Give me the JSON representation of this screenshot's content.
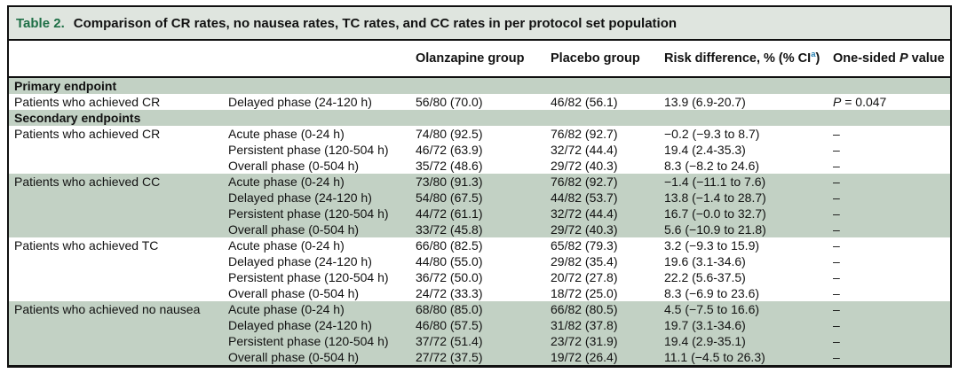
{
  "colors": {
    "shaded_row": "#c2d1c4",
    "title_bar": "#dfe5df",
    "table_label_green": "#1e6f46",
    "footnote_blue": "#2580b3"
  },
  "table": {
    "title_label": "Table 2.",
    "title_text": "Comparison of CR rates, no nausea rates, TC rates, and CC rates in per protocol set population",
    "header": {
      "col_endpoint": "",
      "col_phase": "",
      "col_olanzapine": "Olanzapine group",
      "col_placebo": "Placebo group",
      "col_risk_prefix": "Risk difference, % (% CI",
      "col_risk_sup": "a",
      "col_risk_suffix": ")",
      "col_p_prefix": "One-sided ",
      "col_p_italic": "P",
      "col_p_suffix": " value"
    },
    "sections": [
      {
        "type": "section",
        "label": "Primary endpoint",
        "shaded": true
      },
      {
        "type": "group",
        "label": "Patients who achieved CR",
        "shaded": false,
        "rows": [
          {
            "phase": "Delayed phase (24-120 h)",
            "olanzapine": "56/80 (70.0)",
            "placebo": "46/82 (56.1)",
            "risk": "13.9 (6.9-20.7)",
            "p": "P = 0.047"
          }
        ]
      },
      {
        "type": "section",
        "label": "Secondary endpoints",
        "shaded": true
      },
      {
        "type": "group",
        "label": "Patients who achieved CR",
        "shaded": false,
        "rows": [
          {
            "phase": "Acute phase (0-24 h)",
            "olanzapine": "74/80 (92.5)",
            "placebo": "76/82 (92.7)",
            "risk": "−0.2 (−9.3 to 8.7)",
            "p": "–"
          },
          {
            "phase": "Persistent phase (120-504 h)",
            "olanzapine": "46/72 (63.9)",
            "placebo": "32/72 (44.4)",
            "risk": "19.4 (2.4-35.3)",
            "p": "–"
          },
          {
            "phase": "Overall phase (0-504 h)",
            "olanzapine": "35/72 (48.6)",
            "placebo": "29/72 (40.3)",
            "risk": "8.3 (−8.2 to 24.6)",
            "p": "–"
          }
        ]
      },
      {
        "type": "group",
        "label": "Patients who achieved CC",
        "shaded": true,
        "rows": [
          {
            "phase": "Acute phase (0-24 h)",
            "olanzapine": "73/80 (91.3)",
            "placebo": "76/82 (92.7)",
            "risk": "−1.4 (−11.1 to 7.6)",
            "p": "–"
          },
          {
            "phase": "Delayed phase (24-120 h)",
            "olanzapine": "54/80 (67.5)",
            "placebo": "44/82 (53.7)",
            "risk": "13.8 (−1.4 to 28.7)",
            "p": "–"
          },
          {
            "phase": "Persistent phase (120-504 h)",
            "olanzapine": "44/72 (61.1)",
            "placebo": "32/72 (44.4)",
            "risk": "16.7 (−0.0 to 32.7)",
            "p": "–"
          },
          {
            "phase": "Overall phase (0-504 h)",
            "olanzapine": "33/72 (45.8)",
            "placebo": "29/72 (40.3)",
            "risk": "5.6 (−10.9 to 21.8)",
            "p": "–"
          }
        ]
      },
      {
        "type": "group",
        "label": "Patients who achieved TC",
        "shaded": false,
        "rows": [
          {
            "phase": "Acute phase (0-24 h)",
            "olanzapine": "66/80 (82.5)",
            "placebo": "65/82 (79.3)",
            "risk": "3.2 (−9.3 to 15.9)",
            "p": "–"
          },
          {
            "phase": "Delayed phase (24-120 h)",
            "olanzapine": "44/80 (55.0)",
            "placebo": "29/82 (35.4)",
            "risk": "19.6 (3.1-34.6)",
            "p": "–"
          },
          {
            "phase": "Persistent phase (120-504 h)",
            "olanzapine": "36/72 (50.0)",
            "placebo": "20/72 (27.8)",
            "risk": "22.2 (5.6-37.5)",
            "p": "–"
          },
          {
            "phase": "Overall phase (0-504 h)",
            "olanzapine": "24/72 (33.3)",
            "placebo": "18/72 (25.0)",
            "risk": "8.3 (−6.9 to 23.6)",
            "p": "–"
          }
        ]
      },
      {
        "type": "group",
        "label": "Patients who achieved no nausea",
        "shaded": true,
        "rows": [
          {
            "phase": "Acute phase (0-24 h)",
            "olanzapine": "68/80 (85.0)",
            "placebo": "66/82 (80.5)",
            "risk": "4.5 (−7.5 to 16.6)",
            "p": "–"
          },
          {
            "phase": "Delayed phase (24-120 h)",
            "olanzapine": "46/80 (57.5)",
            "placebo": "31/82 (37.8)",
            "risk": "19.7 (3.1-34.6)",
            "p": "–"
          },
          {
            "phase": "Persistent phase (120-504 h)",
            "olanzapine": "37/72 (51.4)",
            "placebo": "23/72 (31.9)",
            "risk": "19.4 (2.9-35.1)",
            "p": "–"
          },
          {
            "phase": "Overall phase (0-504 h)",
            "olanzapine": "27/72 (37.5)",
            "placebo": "19/72 (26.4)",
            "risk": "11.1 (−4.5 to 26.3)",
            "p": "–"
          }
        ]
      }
    ]
  }
}
